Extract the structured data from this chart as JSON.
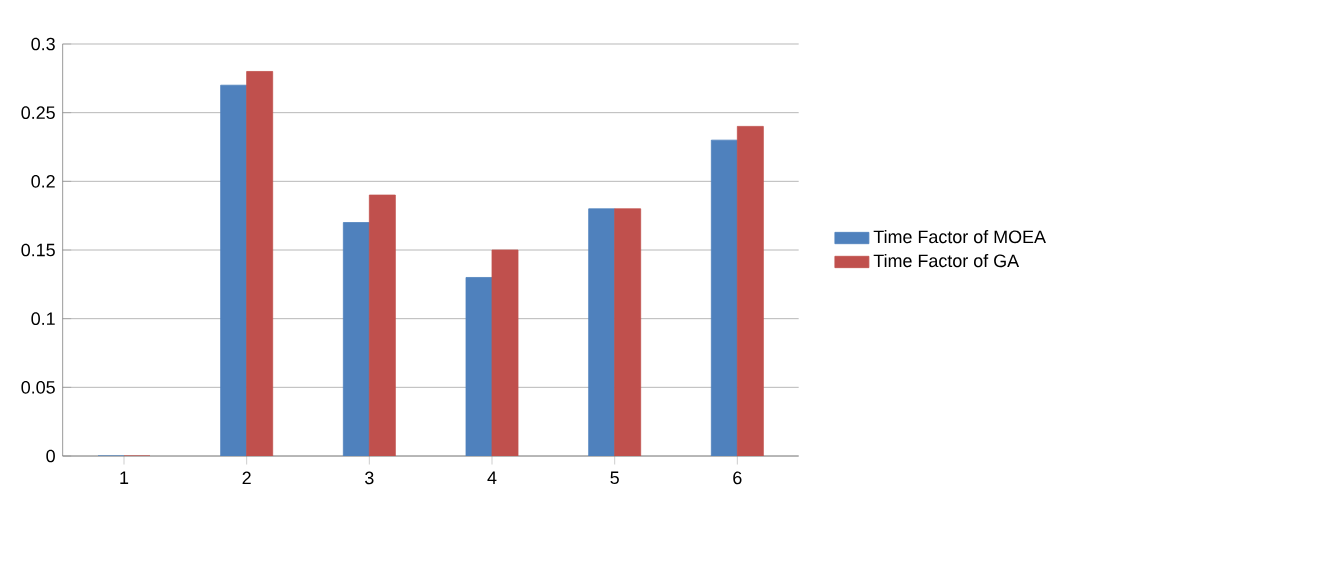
{
  "chart_data": {
    "type": "bar",
    "categories": [
      "1",
      "2",
      "3",
      "4",
      "5",
      "6"
    ],
    "series": [
      {
        "name": "Time Factor of MOEA",
        "color": "#4f81bd",
        "values": [
          0,
          0.27,
          0.17,
          0.13,
          0.18,
          0.23
        ]
      },
      {
        "name": "Time Factor of GA",
        "color": "#c0504d",
        "values": [
          0,
          0.28,
          0.19,
          0.15,
          0.18,
          0.24
        ]
      }
    ],
    "ylim": [
      0,
      0.3
    ],
    "yticks": [
      0,
      0.05,
      0.1,
      0.15,
      0.2,
      0.25,
      0.3
    ],
    "grid": "y",
    "legend": "right"
  }
}
